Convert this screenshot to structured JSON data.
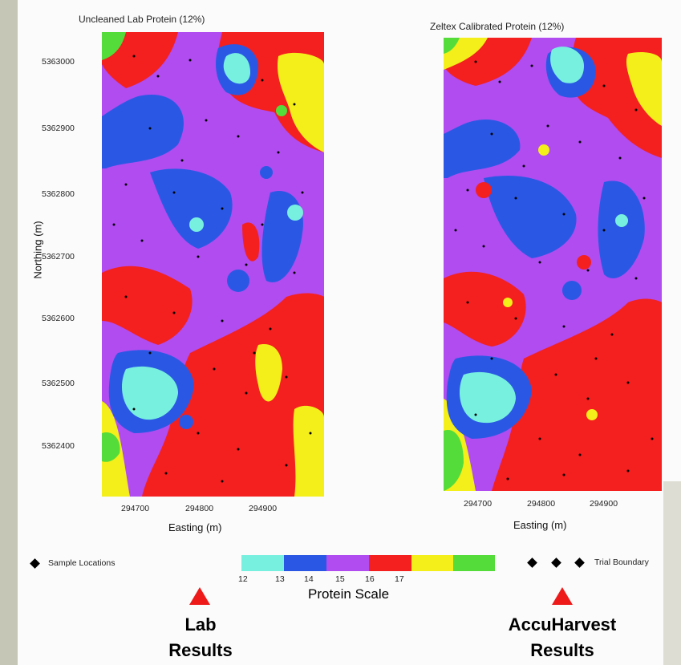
{
  "maps": {
    "lab": {
      "title": "Uncleaned Lab Protein (12%)",
      "x_ticks": [
        "294700",
        "294800",
        "294900"
      ],
      "xlabel": "Easting (m)"
    },
    "zeltex": {
      "title": "Zeltex Calibrated Protein (12%)",
      "x_ticks": [
        "294700",
        "294800",
        "294900"
      ],
      "xlabel": "Easting (m)"
    },
    "y_ticks": [
      "5363000",
      "5362900",
      "5362800",
      "5362700",
      "5362600",
      "5362500",
      "5362400"
    ],
    "ylabel": "Northing (m)"
  },
  "legend": {
    "sample_locations": "Sample Locations",
    "trial_boundary": "Trial Boundary",
    "scale_title": "Protein Scale",
    "scale_ticks": [
      "12",
      "13",
      "14",
      "15",
      "16",
      "17"
    ],
    "scale_colors": [
      "#78f0e0",
      "#2a58e4",
      "#b04cf0",
      "#f41f1f",
      "#f4ee1a",
      "#54dc3a"
    ]
  },
  "callouts": {
    "lab": [
      "Lab",
      "Results"
    ],
    "accu": [
      "AccuHarvest",
      "Results"
    ]
  },
  "colors": {
    "callout_arrow": "#ee1a1a"
  }
}
